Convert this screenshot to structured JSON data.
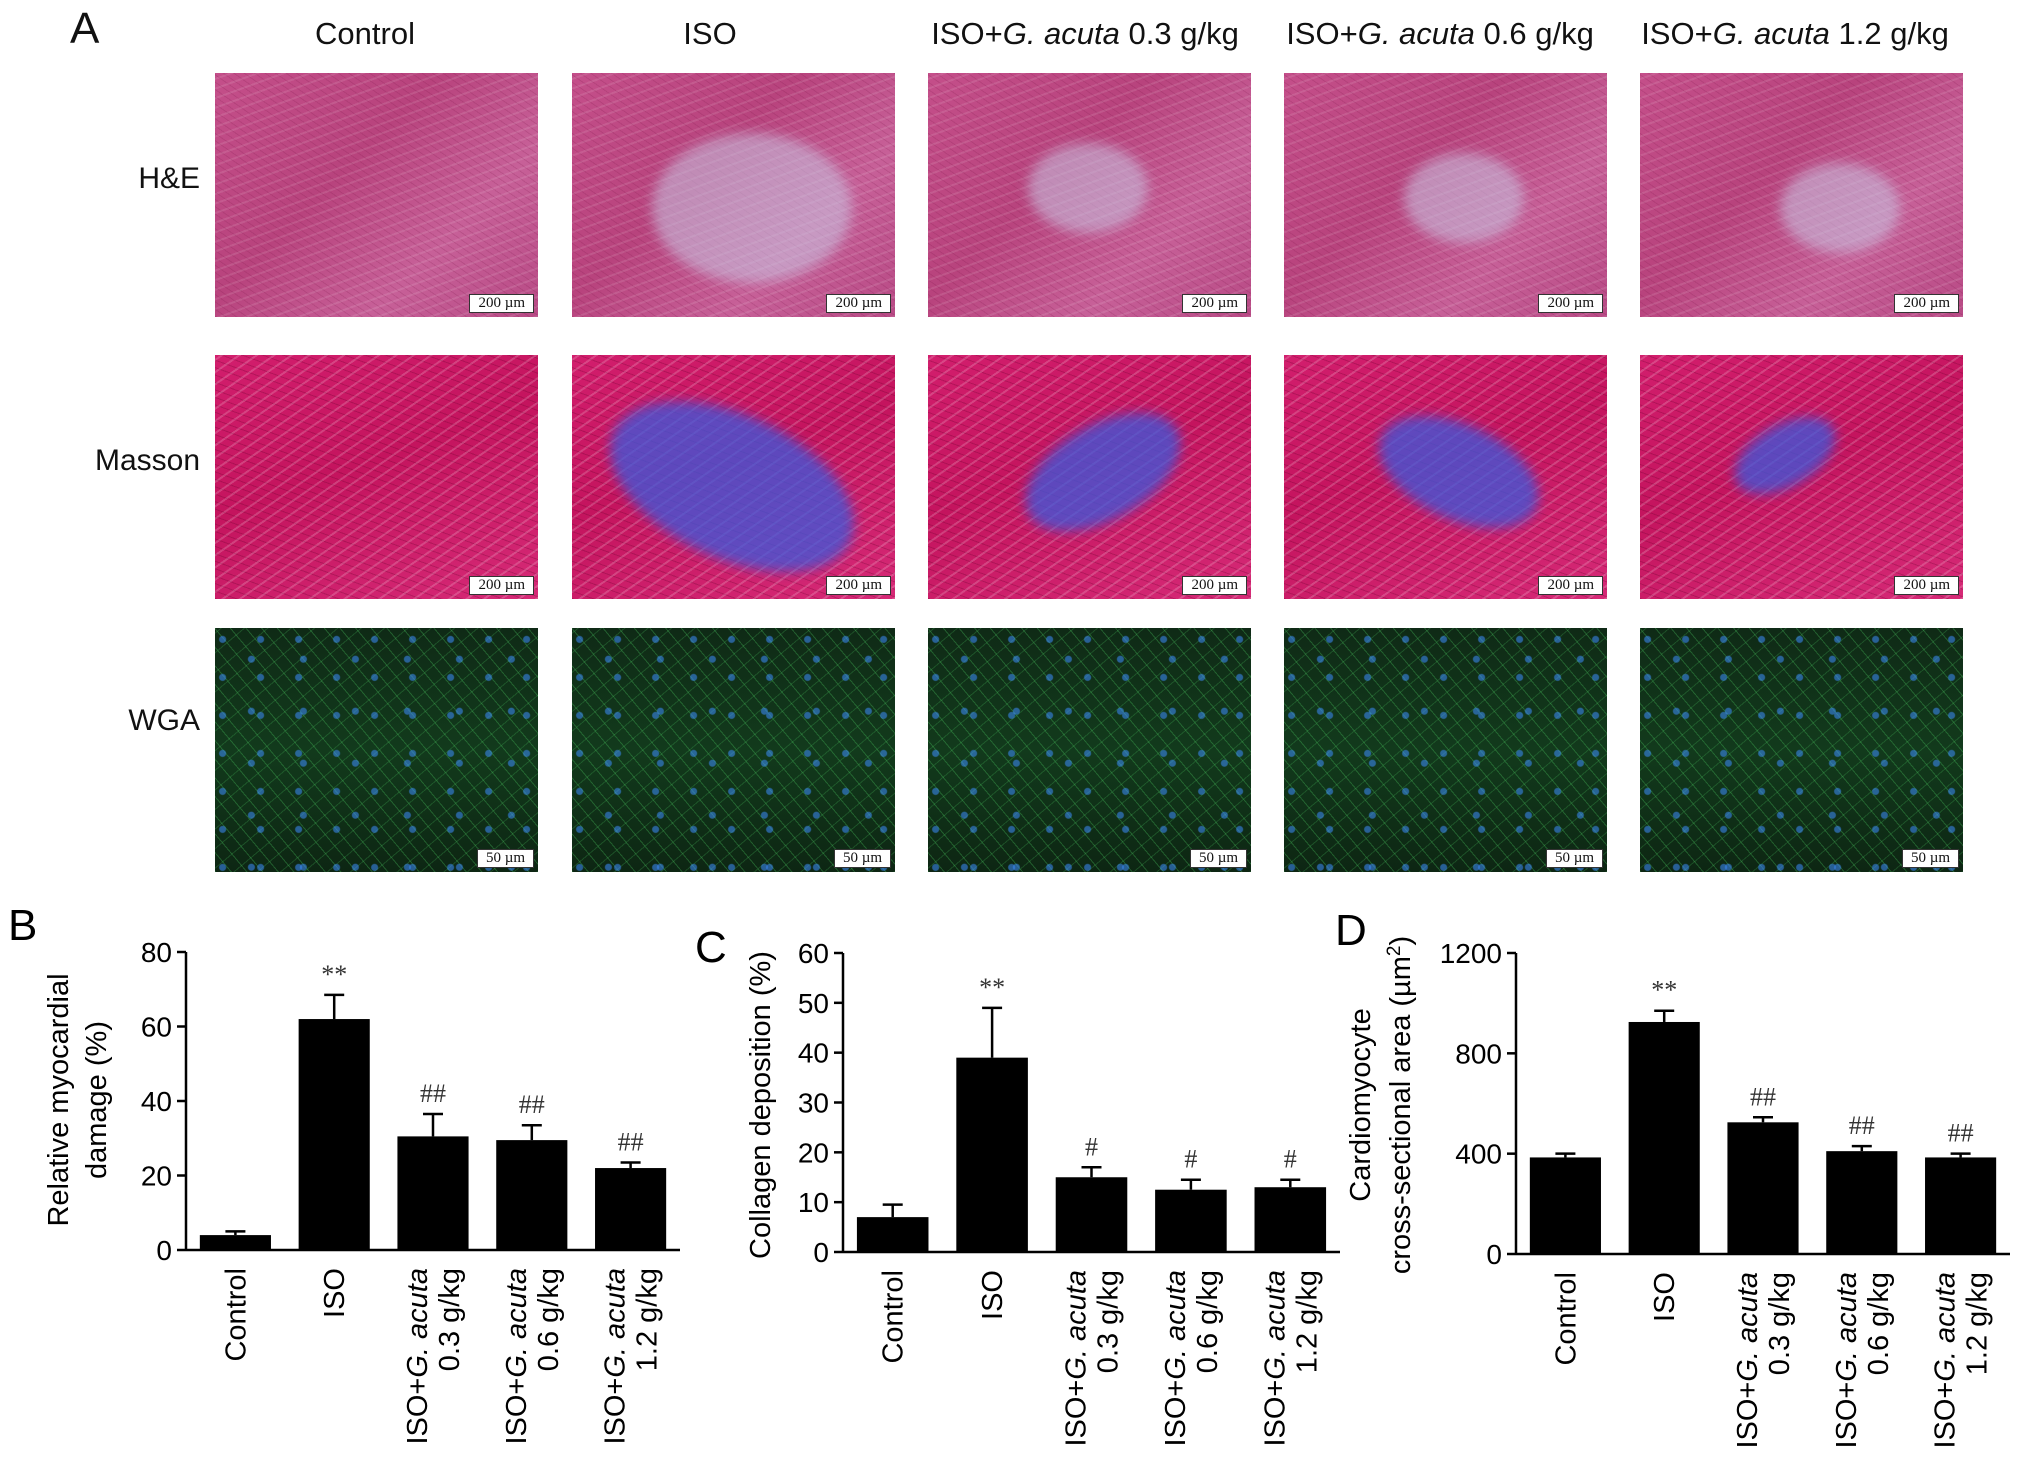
{
  "panel_a": {
    "letter": "A",
    "columns": [
      "Control",
      "ISO",
      "ISO+G. acuta 0.3 g/kg",
      "ISO+G. acuta 0.6 g/kg",
      "ISO+G. acuta 1.2 g/kg"
    ],
    "column_parts": [
      {
        "pre": "Control",
        "ital": "",
        "post": ""
      },
      {
        "pre": "ISO",
        "ital": "",
        "post": ""
      },
      {
        "pre": "ISO+",
        "ital": "G. acuta",
        "post": " 0.3 g/kg"
      },
      {
        "pre": "ISO+",
        "ital": "G. acuta",
        "post": " 0.6 g/kg"
      },
      {
        "pre": "ISO+",
        "ital": "G. acuta",
        "post": " 1.2 g/kg"
      }
    ],
    "rows": [
      {
        "label": "H&E",
        "scale": "200 µm",
        "stain": "he"
      },
      {
        "label": "Masson",
        "scale": "200 µm",
        "stain": "ms"
      },
      {
        "label": "WGA",
        "scale": "50 µm",
        "stain": "wga"
      }
    ]
  },
  "chart_data": [
    {
      "panel": "B",
      "type": "bar",
      "categories": [
        "Control",
        "ISO",
        "ISO+G. acuta 0.3 g/kg",
        "ISO+G. acuta 0.6 g/kg",
        "ISO+G. acuta 1.2 g/kg"
      ],
      "values": [
        4,
        62,
        30.5,
        29.5,
        22
      ],
      "errors": [
        1,
        6.5,
        6,
        4,
        1.5
      ],
      "annotations": [
        "",
        "**",
        "##",
        "##",
        "##"
      ],
      "ylabel": "Relative myocardial damage (%)",
      "ylabel_lines": [
        "Relative myocardial",
        "damage (%)"
      ],
      "ylim": [
        0,
        80
      ],
      "yticks": [
        0,
        20,
        40,
        60,
        80
      ]
    },
    {
      "panel": "C",
      "type": "bar",
      "categories": [
        "Control",
        "ISO",
        "ISO+G. acuta 0.3 g/kg",
        "ISO+G. acuta 0.6 g/kg",
        "ISO+G. acuta 1.2 g/kg"
      ],
      "values": [
        7,
        39,
        15,
        12.5,
        13
      ],
      "errors": [
        2.5,
        10,
        2,
        2,
        1.5
      ],
      "annotations": [
        "",
        "**",
        "#",
        "#",
        "#"
      ],
      "ylabel": "Collagen deposition (%)",
      "ylabel_lines": [
        "Collagen deposition (%)"
      ],
      "ylim": [
        0,
        60
      ],
      "yticks": [
        0,
        10,
        20,
        30,
        40,
        50,
        60
      ]
    },
    {
      "panel": "D",
      "type": "bar",
      "categories": [
        "Control",
        "ISO",
        "ISO+G. acuta 0.3 g/kg",
        "ISO+G. acuta 0.6 g/kg",
        "ISO+G. acuta 1.2 g/kg"
      ],
      "values": [
        385,
        925,
        525,
        410,
        385
      ],
      "errors": [
        15,
        45,
        20,
        20,
        15
      ],
      "annotations": [
        "",
        "**",
        "##",
        "##",
        "##"
      ],
      "ylabel": "Cardiomyocyte cross-sectional area (µm2)",
      "ylabel_lines": [
        "Cardiomyocyte",
        "cross-sectional area (µm",
        "2",
        ")"
      ],
      "ylim": [
        0,
        1200
      ],
      "yticks": [
        0,
        400,
        800,
        1200
      ]
    }
  ],
  "tick_label_parts": [
    {
      "l1": "Control"
    },
    {
      "l1": "ISO"
    },
    {
      "l1pre": "ISO+",
      "ital": "G. acuta",
      "l2": "0.3 g/kg"
    },
    {
      "l1pre": "ISO+",
      "ital": "G. acuta",
      "l2": "0.6 g/kg"
    },
    {
      "l1pre": "ISO+",
      "ital": "G. acuta",
      "l2": "1.2 g/kg"
    }
  ]
}
